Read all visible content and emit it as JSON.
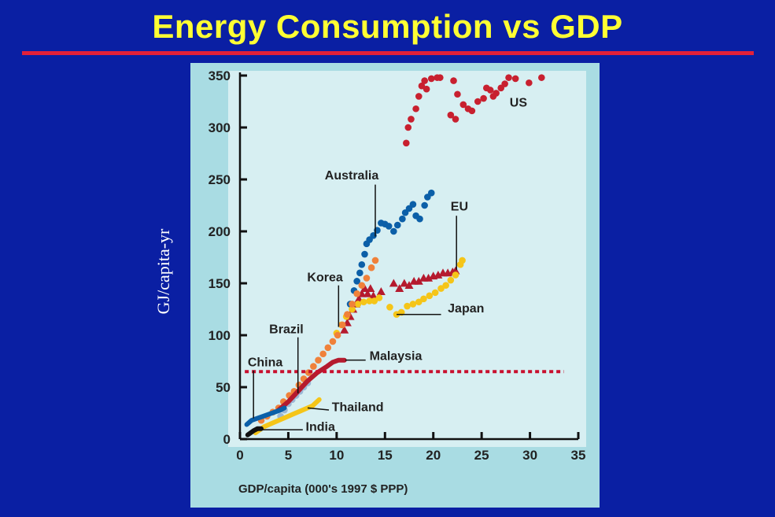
{
  "slide": {
    "title": "Energy Consumption vs GDP",
    "side_label": "GJ/capita-yr",
    "colors": {
      "background": "#0a1fa3",
      "title": "#ffff33",
      "rule": "#e2203a",
      "panel": "#a9dce3",
      "plot_bg": "#d7eff2"
    }
  },
  "chart_data": {
    "type": "scatter",
    "title": "",
    "xlabel": "GDP/capita (000's 1997 $ PPP)",
    "ylabel": "",
    "xlim": [
      0,
      35
    ],
    "ylim": [
      0,
      350
    ],
    "x_ticks": [
      0,
      5,
      10,
      15,
      20,
      25,
      30,
      35
    ],
    "y_ticks": [
      0,
      50,
      100,
      150,
      200,
      250,
      300,
      350
    ],
    "grid": false,
    "reference_line": {
      "y": 65,
      "x_range": [
        0.5,
        33.5
      ],
      "style": "dotted",
      "color": "#c8102e"
    },
    "series": [
      {
        "name": "US",
        "color": "#c8202f",
        "marker": "circle",
        "label": {
          "x": 27.9,
          "y": 320
        },
        "points": [
          [
            17.2,
            285
          ],
          [
            17.4,
            300
          ],
          [
            17.7,
            308
          ],
          [
            18.2,
            318
          ],
          [
            18.5,
            330
          ],
          [
            18.8,
            340
          ],
          [
            19.1,
            345
          ],
          [
            19.3,
            337
          ],
          [
            19.8,
            347
          ],
          [
            20.4,
            348
          ],
          [
            20.7,
            348
          ],
          [
            21.8,
            312
          ],
          [
            22.1,
            345
          ],
          [
            22.3,
            308
          ],
          [
            22.5,
            332
          ],
          [
            23.1,
            322
          ],
          [
            23.6,
            318
          ],
          [
            24.0,
            316
          ],
          [
            24.6,
            325
          ],
          [
            25.2,
            328
          ],
          [
            25.5,
            338
          ],
          [
            25.9,
            336
          ],
          [
            26.2,
            330
          ],
          [
            26.5,
            333
          ],
          [
            27.0,
            338
          ],
          [
            27.4,
            342
          ],
          [
            27.8,
            348
          ],
          [
            28.5,
            347
          ],
          [
            29.9,
            343
          ],
          [
            31.2,
            348
          ]
        ]
      },
      {
        "name": "Australia",
        "color": "#0b5fa8",
        "marker": "circle",
        "label": {
          "x": 14.0,
          "y": 250
        },
        "points": [
          [
            11.4,
            130
          ],
          [
            11.8,
            143
          ],
          [
            12.1,
            152
          ],
          [
            12.4,
            160
          ],
          [
            12.6,
            168
          ],
          [
            12.9,
            178
          ],
          [
            13.1,
            188
          ],
          [
            13.4,
            192
          ],
          [
            13.8,
            196
          ],
          [
            14.2,
            201
          ],
          [
            14.6,
            208
          ],
          [
            15.0,
            207
          ],
          [
            15.4,
            205
          ],
          [
            15.9,
            200
          ],
          [
            16.3,
            206
          ],
          [
            16.8,
            212
          ],
          [
            17.1,
            218
          ],
          [
            17.5,
            222
          ],
          [
            17.9,
            226
          ],
          [
            18.2,
            215
          ],
          [
            18.6,
            212
          ],
          [
            19.1,
            225
          ],
          [
            19.4,
            233
          ],
          [
            19.8,
            237
          ]
        ]
      },
      {
        "name": "EU",
        "color": "#b51a2e",
        "marker": "triangle",
        "label": {
          "x": 22.7,
          "y": 220
        },
        "points": [
          [
            10.8,
            105
          ],
          [
            11.1,
            112
          ],
          [
            11.4,
            118
          ],
          [
            11.7,
            125
          ],
          [
            12.0,
            130
          ],
          [
            12.3,
            135
          ],
          [
            12.6,
            140
          ],
          [
            12.9,
            145
          ],
          [
            13.2,
            140
          ],
          [
            13.5,
            145
          ],
          [
            13.8,
            138
          ],
          [
            14.6,
            142
          ],
          [
            15.9,
            150
          ],
          [
            16.5,
            145
          ],
          [
            17.0,
            150
          ],
          [
            17.5,
            148
          ],
          [
            18.0,
            152
          ],
          [
            18.5,
            152
          ],
          [
            19.0,
            155
          ],
          [
            19.5,
            155
          ],
          [
            20.0,
            157
          ],
          [
            20.5,
            158
          ],
          [
            21.0,
            160
          ],
          [
            21.5,
            160
          ],
          [
            22.0,
            161
          ],
          [
            22.3,
            162
          ]
        ]
      },
      {
        "name": "Japan",
        "color": "#f5c518",
        "marker": "circle",
        "label": {
          "x": 21.5,
          "y": 122
        },
        "points": [
          [
            10.0,
            102
          ],
          [
            10.5,
            110
          ],
          [
            11.0,
            118
          ],
          [
            11.6,
            125
          ],
          [
            12.2,
            130
          ],
          [
            12.8,
            132
          ],
          [
            13.4,
            133
          ],
          [
            13.9,
            133
          ],
          [
            14.4,
            136
          ],
          [
            15.5,
            127
          ],
          [
            16.2,
            120
          ],
          [
            16.7,
            122
          ],
          [
            17.3,
            128
          ],
          [
            17.9,
            130
          ],
          [
            18.5,
            132
          ],
          [
            19.0,
            135
          ],
          [
            19.6,
            138
          ],
          [
            20.2,
            141
          ],
          [
            20.8,
            145
          ],
          [
            21.3,
            148
          ],
          [
            21.8,
            153
          ],
          [
            22.3,
            158
          ],
          [
            22.8,
            168
          ],
          [
            23.0,
            172
          ]
        ]
      },
      {
        "name": "Korea",
        "color": "#f0813a",
        "marker": "circle",
        "label": {
          "x": 8.8,
          "y": 152
        },
        "points": [
          [
            2.2,
            18
          ],
          [
            2.8,
            22
          ],
          [
            3.4,
            26
          ],
          [
            4.0,
            30
          ],
          [
            4.5,
            36
          ],
          [
            5.1,
            42
          ],
          [
            5.6,
            46
          ],
          [
            6.1,
            52
          ],
          [
            6.6,
            58
          ],
          [
            7.1,
            64
          ],
          [
            7.6,
            70
          ],
          [
            8.1,
            76
          ],
          [
            8.6,
            82
          ],
          [
            9.1,
            88
          ],
          [
            9.6,
            94
          ],
          [
            10.1,
            100
          ],
          [
            10.6,
            110
          ],
          [
            11.1,
            120
          ],
          [
            11.6,
            130
          ],
          [
            12.1,
            140
          ],
          [
            12.6,
            148
          ],
          [
            13.1,
            155
          ],
          [
            13.6,
            165
          ],
          [
            14.0,
            172
          ]
        ]
      },
      {
        "name": "Brazil",
        "color": "#9bb7d6",
        "marker": "circle",
        "label": {
          "x": 4.8,
          "y": 102
        },
        "points": [
          [
            4.2,
            22
          ],
          [
            4.6,
            28
          ],
          [
            5.0,
            34
          ],
          [
            5.4,
            38
          ],
          [
            5.8,
            42
          ],
          [
            6.2,
            46
          ],
          [
            6.6,
            50
          ],
          [
            7.0,
            54
          ]
        ]
      },
      {
        "name": "Malaysia",
        "color": "#b51a2e",
        "marker": "line",
        "label": {
          "x": 13.4,
          "y": 76
        },
        "points": [
          [
            4.0,
            28
          ],
          [
            5.0,
            36
          ],
          [
            6.0,
            46
          ],
          [
            7.0,
            56
          ],
          [
            8.0,
            64
          ],
          [
            9.0,
            70
          ],
          [
            9.6,
            74
          ],
          [
            10.2,
            76
          ],
          [
            10.8,
            76
          ]
        ]
      },
      {
        "name": "China",
        "color": "#0b5fa8",
        "marker": "line",
        "label": {
          "x": 0.8,
          "y": 70
        },
        "points": [
          [
            0.7,
            14
          ],
          [
            1.2,
            18
          ],
          [
            1.8,
            20
          ],
          [
            2.4,
            22
          ],
          [
            3.0,
            24
          ],
          [
            3.6,
            26
          ],
          [
            4.2,
            28
          ],
          [
            4.6,
            30
          ]
        ]
      },
      {
        "name": "Thailand",
        "color": "#f5c518",
        "marker": "line",
        "label": {
          "x": 9.5,
          "y": 27
        },
        "points": [
          [
            1.6,
            6
          ],
          [
            2.5,
            12
          ],
          [
            3.5,
            16
          ],
          [
            4.5,
            20
          ],
          [
            5.5,
            24
          ],
          [
            6.5,
            28
          ],
          [
            7.5,
            32
          ],
          [
            8.2,
            38
          ]
        ]
      },
      {
        "name": "India",
        "color": "#111111",
        "marker": "line",
        "label": {
          "x": 6.8,
          "y": 8
        },
        "points": [
          [
            0.8,
            4
          ],
          [
            1.1,
            6
          ],
          [
            1.4,
            8
          ],
          [
            1.8,
            10
          ],
          [
            2.2,
            10
          ]
        ]
      }
    ]
  }
}
